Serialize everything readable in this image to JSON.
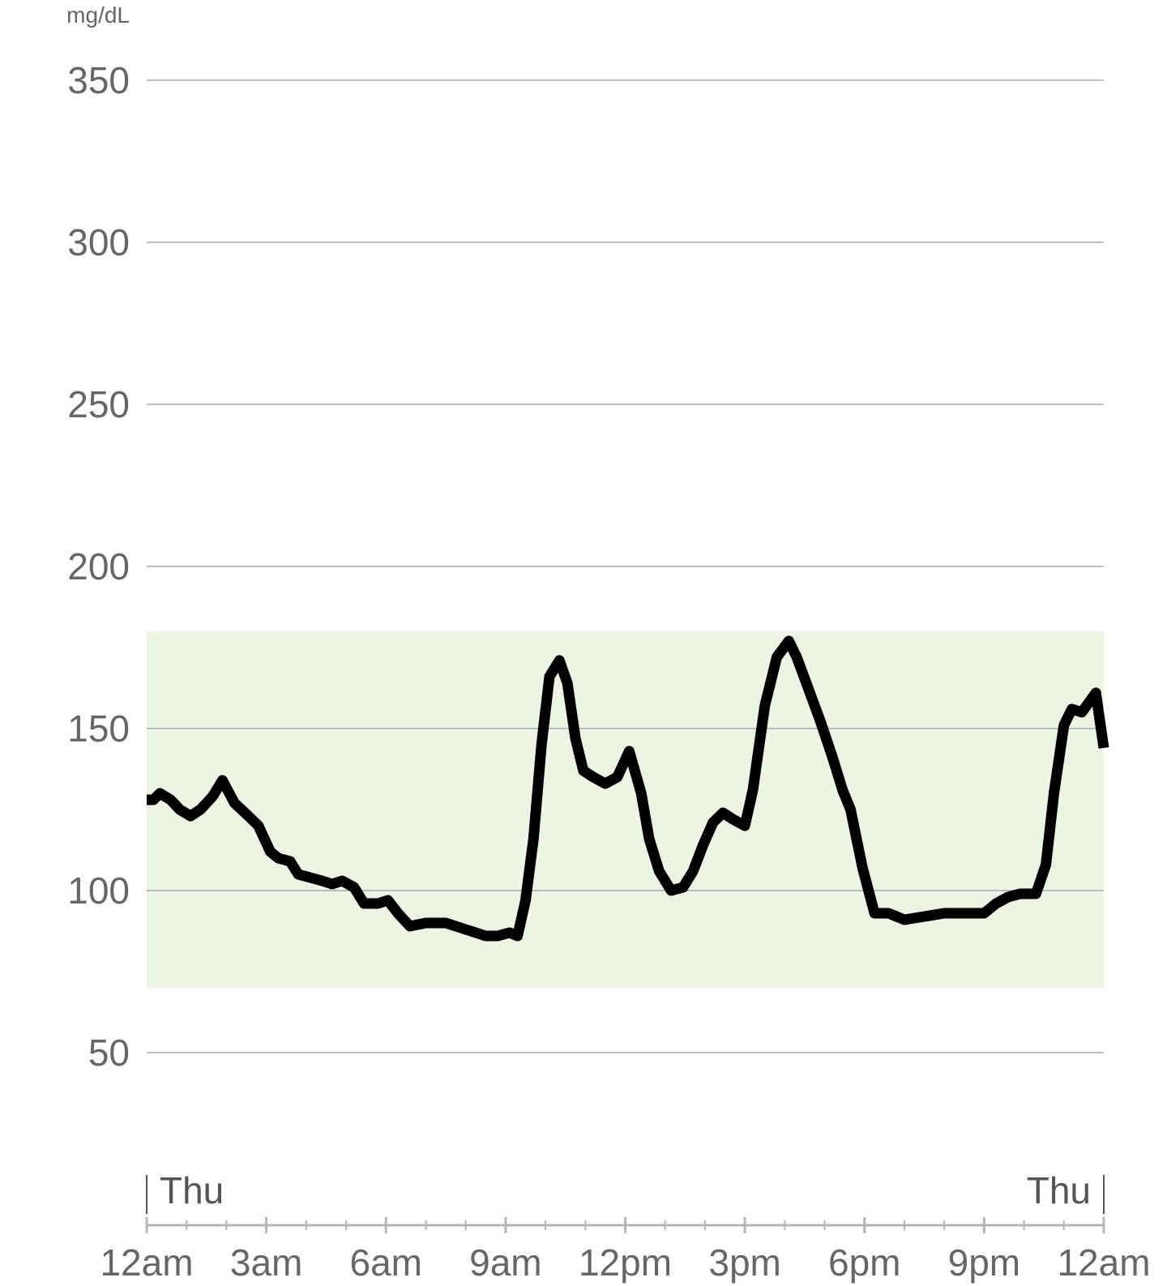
{
  "chart_data": {
    "type": "line",
    "title": "",
    "xlabel": "",
    "ylabel": "mg/dL",
    "ylim": [
      20,
      360
    ],
    "xlim_hours": [
      0,
      24
    ],
    "grid": true,
    "yticks": [
      50,
      100,
      150,
      200,
      250,
      300,
      350
    ],
    "xticks": [
      {
        "hour": 0,
        "label": "12am"
      },
      {
        "hour": 3,
        "label": "3am"
      },
      {
        "hour": 6,
        "label": "6am"
      },
      {
        "hour": 9,
        "label": "9am"
      },
      {
        "hour": 12,
        "label": "12pm"
      },
      {
        "hour": 15,
        "label": "3pm"
      },
      {
        "hour": 18,
        "label": "6pm"
      },
      {
        "hour": 21,
        "label": "9pm"
      },
      {
        "hour": 24,
        "label": "12am"
      }
    ],
    "day_markers": [
      {
        "hour": 0,
        "label": "Thu",
        "align": "start"
      },
      {
        "hour": 24,
        "label": "Thu",
        "align": "end"
      }
    ],
    "target_range": {
      "low": 70,
      "high": 180,
      "color": "#ecf4e4"
    },
    "line_color": "#000000",
    "series": [
      {
        "x_hours": [
          0,
          0.17,
          0.33,
          0.6,
          0.83,
          1.1,
          1.35,
          1.65,
          1.9,
          2.2,
          2.55,
          2.8,
          3.1,
          3.3,
          3.6,
          3.8,
          4.1,
          4.4,
          4.65,
          4.9,
          5.2,
          5.45,
          5.6,
          5.8,
          6.05,
          6.3,
          6.6,
          7.0,
          7.5,
          8.0,
          8.5,
          8.8,
          9.1,
          9.3,
          9.5,
          9.7,
          9.9,
          10.1,
          10.35,
          10.55,
          10.75,
          10.95,
          11.2,
          11.5,
          11.8,
          12.1,
          12.4,
          12.6,
          12.85,
          13.15,
          13.45,
          13.7,
          13.95,
          14.2,
          14.45,
          14.7,
          15.0,
          15.2,
          15.5,
          15.8,
          16.1,
          16.3,
          16.6,
          16.9,
          17.2,
          17.45,
          17.65,
          17.95,
          18.25,
          18.6,
          19.0,
          19.5,
          20.0,
          20.5,
          21.0,
          21.3,
          21.6,
          21.9,
          22.1,
          22.3,
          22.55,
          22.75,
          23.0,
          23.2,
          23.45,
          23.8,
          24.0
        ],
        "values": [
          128,
          128,
          130,
          128,
          125,
          123,
          125,
          129,
          134,
          127,
          123,
          120,
          112,
          110,
          109,
          105,
          104,
          103,
          102,
          103,
          101,
          96,
          96,
          96,
          97,
          93,
          89,
          90,
          90,
          88,
          86,
          86,
          87,
          86,
          97,
          116,
          145,
          166,
          171,
          164,
          147,
          137,
          135,
          133,
          135,
          143,
          130,
          116,
          106,
          100,
          101,
          106,
          114,
          121,
          124,
          122,
          120,
          131,
          157,
          172,
          177,
          172,
          162,
          152,
          141,
          131,
          125,
          107,
          93,
          93,
          91,
          92,
          93,
          93,
          93,
          96,
          98,
          99,
          99,
          99,
          108,
          130,
          151,
          156,
          155,
          161,
          144
        ]
      }
    ]
  }
}
